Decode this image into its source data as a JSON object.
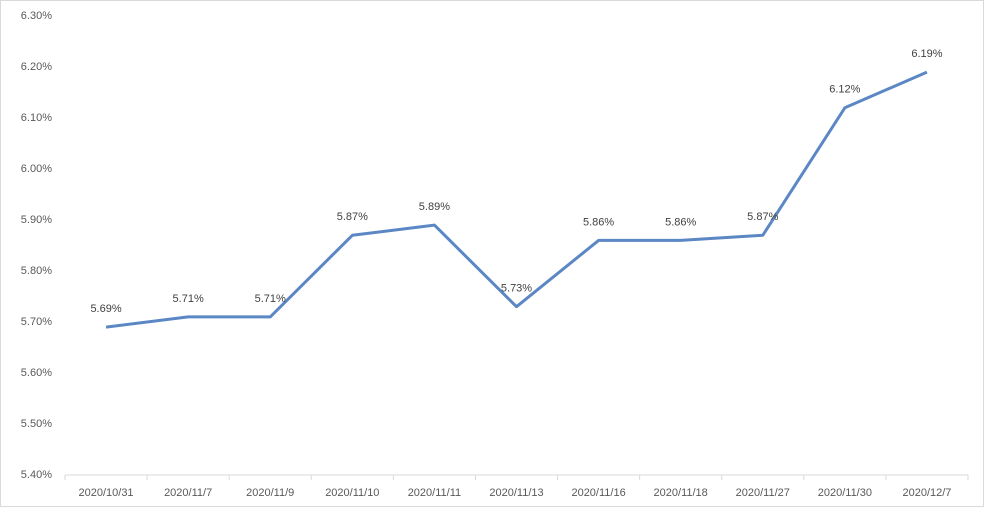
{
  "chart_data": {
    "type": "line",
    "categories": [
      "2020/10/31",
      "2020/11/7",
      "2020/11/9",
      "2020/11/10",
      "2020/11/11",
      "2020/11/13",
      "2020/11/16",
      "2020/11/18",
      "2020/11/27",
      "2020/11/30",
      "2020/12/7"
    ],
    "values": [
      5.69,
      5.71,
      5.71,
      5.87,
      5.89,
      5.73,
      5.86,
      5.86,
      5.87,
      6.12,
      6.19
    ],
    "value_labels": [
      "5.69%",
      "5.71%",
      "5.71%",
      "5.87%",
      "5.89%",
      "5.73%",
      "5.86%",
      "5.86%",
      "5.87%",
      "6.12%",
      "6.19%"
    ],
    "color": "#5b87c5",
    "ylim": [
      5.4,
      6.3
    ],
    "yticks": [
      {
        "value": 5.4,
        "label": "5.40%"
      },
      {
        "value": 5.5,
        "label": "5.50%"
      },
      {
        "value": 5.6,
        "label": "5.60%"
      },
      {
        "value": 5.7,
        "label": "5.70%"
      },
      {
        "value": 5.8,
        "label": "5.80%"
      },
      {
        "value": 5.9,
        "label": "5.90%"
      },
      {
        "value": 6.0,
        "label": "6.00%"
      },
      {
        "value": 6.1,
        "label": "6.10%"
      },
      {
        "value": 6.2,
        "label": "6.20%"
      },
      {
        "value": 6.3,
        "label": "6.30%"
      }
    ],
    "grid": false
  }
}
